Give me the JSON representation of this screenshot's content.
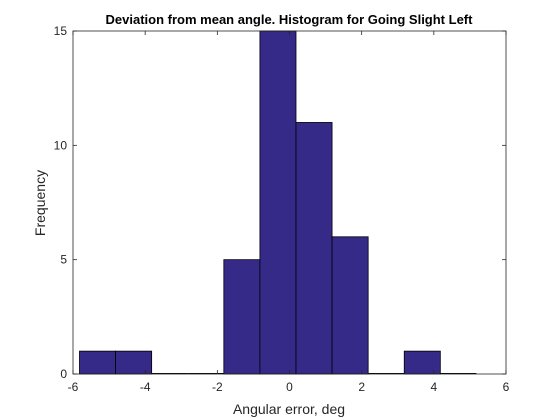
{
  "chart_data": {
    "type": "bar",
    "title": "Deviation from mean angle. Histogram for Going Slight Left",
    "xlabel": "Angular error, deg",
    "ylabel": "Frequency",
    "xlim": [
      -6,
      6
    ],
    "ylim": [
      0,
      15
    ],
    "xticks": [
      -6,
      -4,
      -2,
      0,
      2,
      4,
      6
    ],
    "yticks": [
      0,
      5,
      10,
      15
    ],
    "bins": [
      {
        "x0": -5.82,
        "x1": -4.82,
        "count": 1
      },
      {
        "x0": -4.82,
        "x1": -3.82,
        "count": 1
      },
      {
        "x0": -3.82,
        "x1": -2.82,
        "count": 0
      },
      {
        "x0": -2.82,
        "x1": -1.82,
        "count": 0
      },
      {
        "x0": -1.82,
        "x1": -0.82,
        "count": 5
      },
      {
        "x0": -0.82,
        "x1": 0.18,
        "count": 15
      },
      {
        "x0": 0.18,
        "x1": 1.18,
        "count": 11
      },
      {
        "x0": 1.18,
        "x1": 2.18,
        "count": 6
      },
      {
        "x0": 2.18,
        "x1": 3.18,
        "count": 0
      },
      {
        "x0": 3.18,
        "x1": 4.18,
        "count": 1
      },
      {
        "x0": 4.18,
        "x1": 5.18,
        "count": 0
      }
    ],
    "bar_color": "#352a87",
    "edge_color": "#000000",
    "box": true,
    "grid": false
  }
}
